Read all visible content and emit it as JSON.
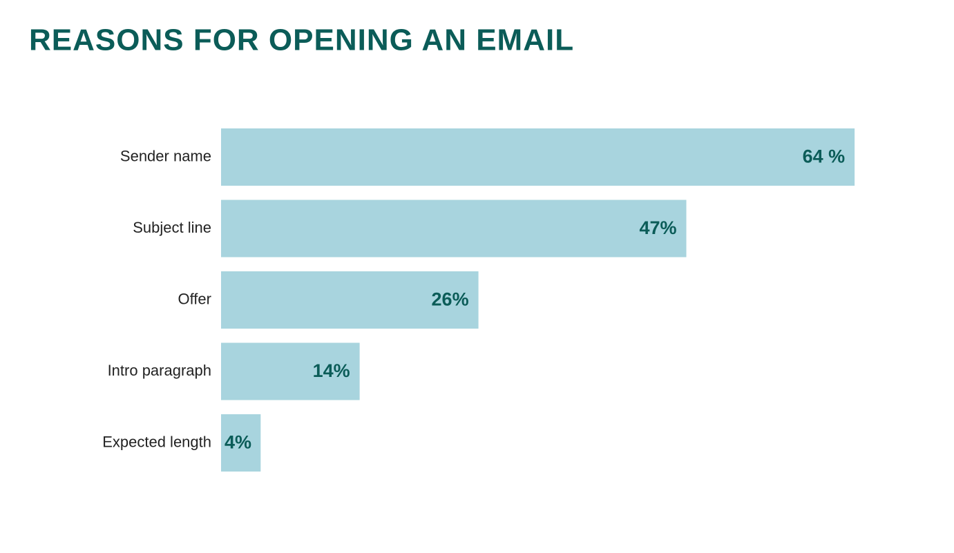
{
  "chart_data": {
    "type": "bar",
    "orientation": "horizontal",
    "title": "REASONS FOR OPENING AN EMAIL",
    "categories": [
      "Sender name",
      "Subject line",
      "Offer",
      "Intro paragraph",
      "Expected length"
    ],
    "values": [
      64,
      47,
      26,
      14,
      4
    ],
    "value_labels": [
      "64 %",
      "47%",
      "26%",
      "14%",
      "4%"
    ],
    "color": "#a8d4de",
    "label_color": "#0b5c58",
    "grid": false
  }
}
